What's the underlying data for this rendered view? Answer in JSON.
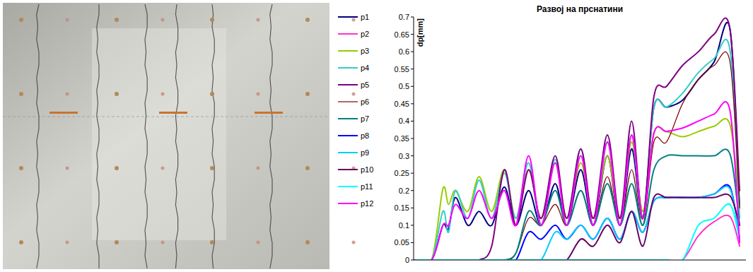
{
  "chart_data": {
    "type": "line",
    "title": "Развој на прснатини",
    "y_label": "dp[mm]",
    "x": [
      0,
      5.4,
      8.8,
      10.5,
      12.6,
      16.3,
      19.7,
      23.5,
      27.3,
      30.8,
      34.6,
      38.4,
      42.6,
      46.1,
      50.3,
      54.1,
      58.3,
      62.1,
      65.6,
      69,
      72.3,
      76.1,
      80.9,
      85.7,
      90.4,
      95.2,
      98.1
    ],
    "xlim": [
      0,
      100
    ],
    "ylim": [
      0,
      0.7
    ],
    "yticks": [
      0,
      0.05,
      0.1,
      0.15,
      0.2,
      0.25,
      0.3,
      0.35,
      0.4,
      0.45,
      0.5,
      0.55,
      0.6,
      0.65,
      0.7
    ],
    "tick_labels": "y",
    "grid": false,
    "legend": "left",
    "series": [
      {
        "name": "p1",
        "color": "#000080",
        "values": [
          0,
          0,
          0.1,
          0.09,
          0.18,
          0.1,
          0.14,
          0.1,
          0.21,
          0.1,
          0.2,
          0.1,
          0.22,
          0.1,
          0.26,
          0.1,
          0.3,
          0.1,
          0.32,
          0.12,
          0.44,
          0.44,
          0.46,
          0.52,
          0.57,
          0.665,
          0.15
        ]
      },
      {
        "name": "p2",
        "color": "#ff33cc",
        "values": [
          0,
          0,
          0,
          0,
          0,
          0,
          0,
          0,
          0,
          0,
          0,
          0,
          0,
          0,
          0,
          0,
          0,
          0,
          0,
          0,
          0,
          0,
          0,
          0.07,
          0.11,
          0.125,
          0.04
        ]
      },
      {
        "name": "p3",
        "color": "#99cc00",
        "values": [
          0,
          0,
          0.205,
          0.16,
          0.2,
          0.14,
          0.24,
          0.14,
          0.26,
          0.12,
          0.26,
          0.12,
          0.28,
          0.12,
          0.28,
          0.12,
          0.3,
          0.12,
          0.34,
          0.14,
          0.365,
          0.37,
          0.355,
          0.37,
          0.385,
          0.39,
          0.15
        ]
      },
      {
        "name": "p4",
        "color": "#33cccc",
        "values": [
          0,
          0,
          0.14,
          0.08,
          0.2,
          0.12,
          0.23,
          0.12,
          0.25,
          0.12,
          0.28,
          0.1,
          0.29,
          0.1,
          0.32,
          0.1,
          0.34,
          0.12,
          0.36,
          0.12,
          0.44,
          0.44,
          0.48,
          0.54,
          0.58,
          0.605,
          0.12
        ]
      },
      {
        "name": "p5",
        "color": "#800080",
        "values": [
          0,
          0,
          0,
          0,
          0,
          0,
          0,
          0.04,
          0.26,
          0.1,
          0.26,
          0.12,
          0.3,
          0.12,
          0.32,
          0.12,
          0.36,
          0.12,
          0.4,
          0.12,
          0.47,
          0.5,
          0.56,
          0.6,
          0.65,
          0.665,
          0.2
        ]
      },
      {
        "name": "p6",
        "color": "#800000",
        "values": [
          0,
          0,
          0,
          0,
          0,
          0,
          0,
          0,
          0,
          0.02,
          0.12,
          0.1,
          0.16,
          0.1,
          0.2,
          0.1,
          0.24,
          0.1,
          0.26,
          0.1,
          0.34,
          0.34,
          0.45,
          0.52,
          0.56,
          0.57,
          0.15
        ]
      },
      {
        "name": "p7",
        "color": "#008080",
        "values": [
          0,
          0,
          0,
          0,
          0,
          0,
          0,
          0,
          0,
          0.02,
          0.14,
          0.1,
          0.2,
          0.1,
          0.2,
          0.1,
          0.22,
          0.1,
          0.22,
          0.1,
          0.26,
          0.3,
          0.3,
          0.3,
          0.3,
          0.305,
          0.1
        ]
      },
      {
        "name": "p8",
        "color": "#0000ff",
        "values": [
          0,
          0,
          0,
          0,
          0,
          0,
          0,
          0,
          0,
          0,
          0.08,
          0.06,
          0.1,
          0.06,
          0.1,
          0.06,
          0.12,
          0.06,
          0.14,
          0.08,
          0.17,
          0.18,
          0.18,
          0.18,
          0.19,
          0.21,
          0.06
        ]
      },
      {
        "name": "p9",
        "color": "#00ccff",
        "values": [
          0,
          0,
          0,
          0,
          0,
          0,
          0,
          0,
          0,
          0,
          0,
          0,
          0.08,
          0.06,
          0.1,
          0.06,
          0.12,
          0.06,
          0.14,
          0.08,
          0.17,
          0.18,
          0.18,
          0.18,
          0.19,
          0.205,
          0.06
        ]
      },
      {
        "name": "p10",
        "color": "#660066",
        "values": [
          0,
          0,
          0,
          0,
          0,
          0,
          0,
          0,
          0,
          0,
          0,
          0,
          0,
          0,
          0.06,
          0.04,
          0.1,
          0.05,
          0.14,
          0.04,
          0.18,
          0.18,
          0.18,
          0.18,
          0.18,
          0.185,
          0.1
        ]
      },
      {
        "name": "p11",
        "color": "#00ffff",
        "values": [
          0,
          0,
          0,
          0,
          0,
          0,
          0,
          0,
          0,
          0,
          0,
          0,
          0,
          0,
          0,
          0,
          0,
          0,
          0,
          0,
          0,
          0,
          0,
          0.1,
          0.12,
          0.16,
          0.06
        ]
      },
      {
        "name": "p12",
        "color": "#ff00ff",
        "values": [
          0,
          0,
          0.1,
          0.1,
          0.16,
          0.12,
          0.2,
          0.12,
          0.2,
          0.1,
          0.3,
          0.1,
          0.28,
          0.1,
          0.3,
          0.1,
          0.34,
          0.1,
          0.36,
          0.12,
          0.365,
          0.37,
          0.38,
          0.4,
          0.42,
          0.43,
          0.05
        ]
      }
    ]
  }
}
